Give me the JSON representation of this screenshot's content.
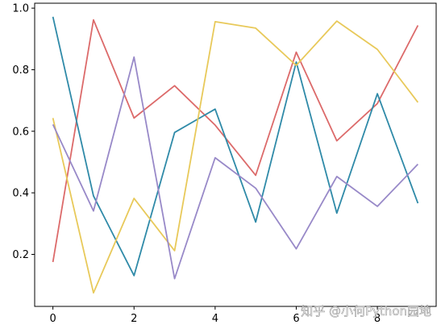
{
  "chart_data": {
    "type": "line",
    "x": [
      0,
      1,
      2,
      3,
      4,
      5,
      6,
      7,
      8,
      9
    ],
    "xlim": [
      -0.45,
      9.45
    ],
    "ylim": [
      0.031,
      1.016
    ],
    "xticks": [
      0,
      2,
      4,
      6,
      8
    ],
    "yticks": [
      0.2,
      0.4,
      0.6,
      0.8,
      1.0
    ],
    "xtick_labels": [
      "0",
      "2",
      "4",
      "6",
      "8"
    ],
    "ytick_labels": [
      "0.2",
      "0.4",
      "0.6",
      "0.8",
      "1.0"
    ],
    "grid": false,
    "series": [
      {
        "color": "#dc6a6a",
        "values": [
          0.175,
          0.962,
          0.643,
          0.748,
          0.62,
          0.457,
          0.857,
          0.569,
          0.69,
          0.944
        ]
      },
      {
        "color": "#2f8aa8",
        "values": [
          0.972,
          0.39,
          0.131,
          0.596,
          0.672,
          0.305,
          0.825,
          0.334,
          0.722,
          0.366
        ]
      },
      {
        "color": "#e8c95a",
        "values": [
          0.643,
          0.075,
          0.382,
          0.212,
          0.956,
          0.935,
          0.814,
          0.958,
          0.866,
          0.694
        ]
      },
      {
        "color": "#9889c8",
        "values": [
          0.622,
          0.341,
          0.841,
          0.121,
          0.514,
          0.415,
          0.218,
          0.453,
          0.356,
          0.493
        ]
      }
    ]
  },
  "watermark": {
    "text": "知乎 @小何Python园地"
  }
}
